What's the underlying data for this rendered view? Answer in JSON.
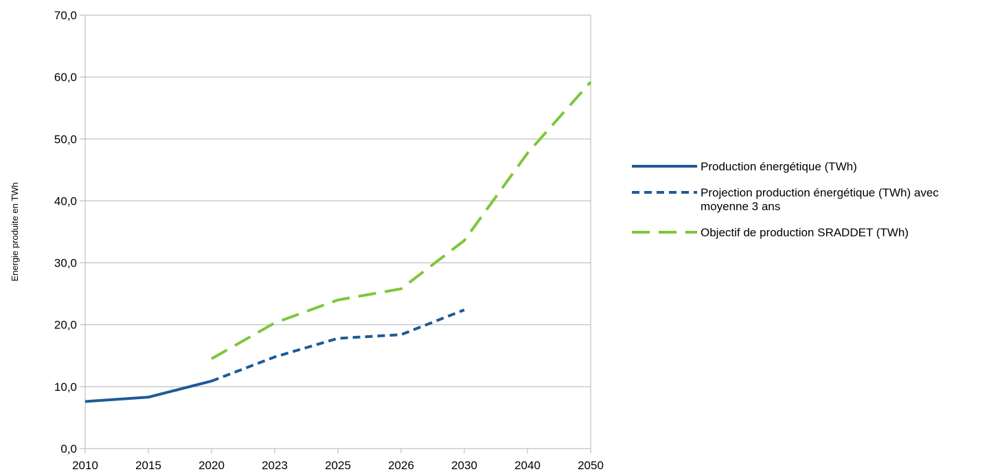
{
  "chart_data": {
    "type": "line",
    "title": "",
    "xlabel": "",
    "ylabel": "Energie produite en TWh",
    "categories": [
      "2010",
      "2015",
      "2020",
      "2023",
      "2025",
      "2026",
      "2030",
      "2040",
      "2050"
    ],
    "ylim": [
      0,
      70
    ],
    "yticks": [
      "0,0",
      "10,0",
      "20,0",
      "30,0",
      "40,0",
      "50,0",
      "60,0",
      "70,0"
    ],
    "grid": true,
    "legend_position": "right",
    "series": [
      {
        "name": "Production énergétique (TWh)",
        "color": "#1f5a96",
        "dash": "solid",
        "values": [
          7.6,
          8.3,
          10.9,
          null,
          null,
          null,
          null,
          null,
          null
        ]
      },
      {
        "name": "Projection production énergétique (TWh) avec moyenne 3 ans",
        "legend_lines": [
          "Projection production énergétique (TWh) avec",
          "moyenne 3 ans"
        ],
        "color": "#1f5a96",
        "dash": "short",
        "values": [
          null,
          null,
          10.9,
          14.8,
          17.8,
          18.4,
          22.4,
          null,
          null
        ]
      },
      {
        "name": "Objectif de production SRADDET (TWh)",
        "color": "#7dc73a",
        "dash": "long",
        "values": [
          null,
          null,
          14.5,
          20.3,
          24.0,
          25.8,
          33.6,
          47.7,
          59.2
        ]
      }
    ]
  }
}
